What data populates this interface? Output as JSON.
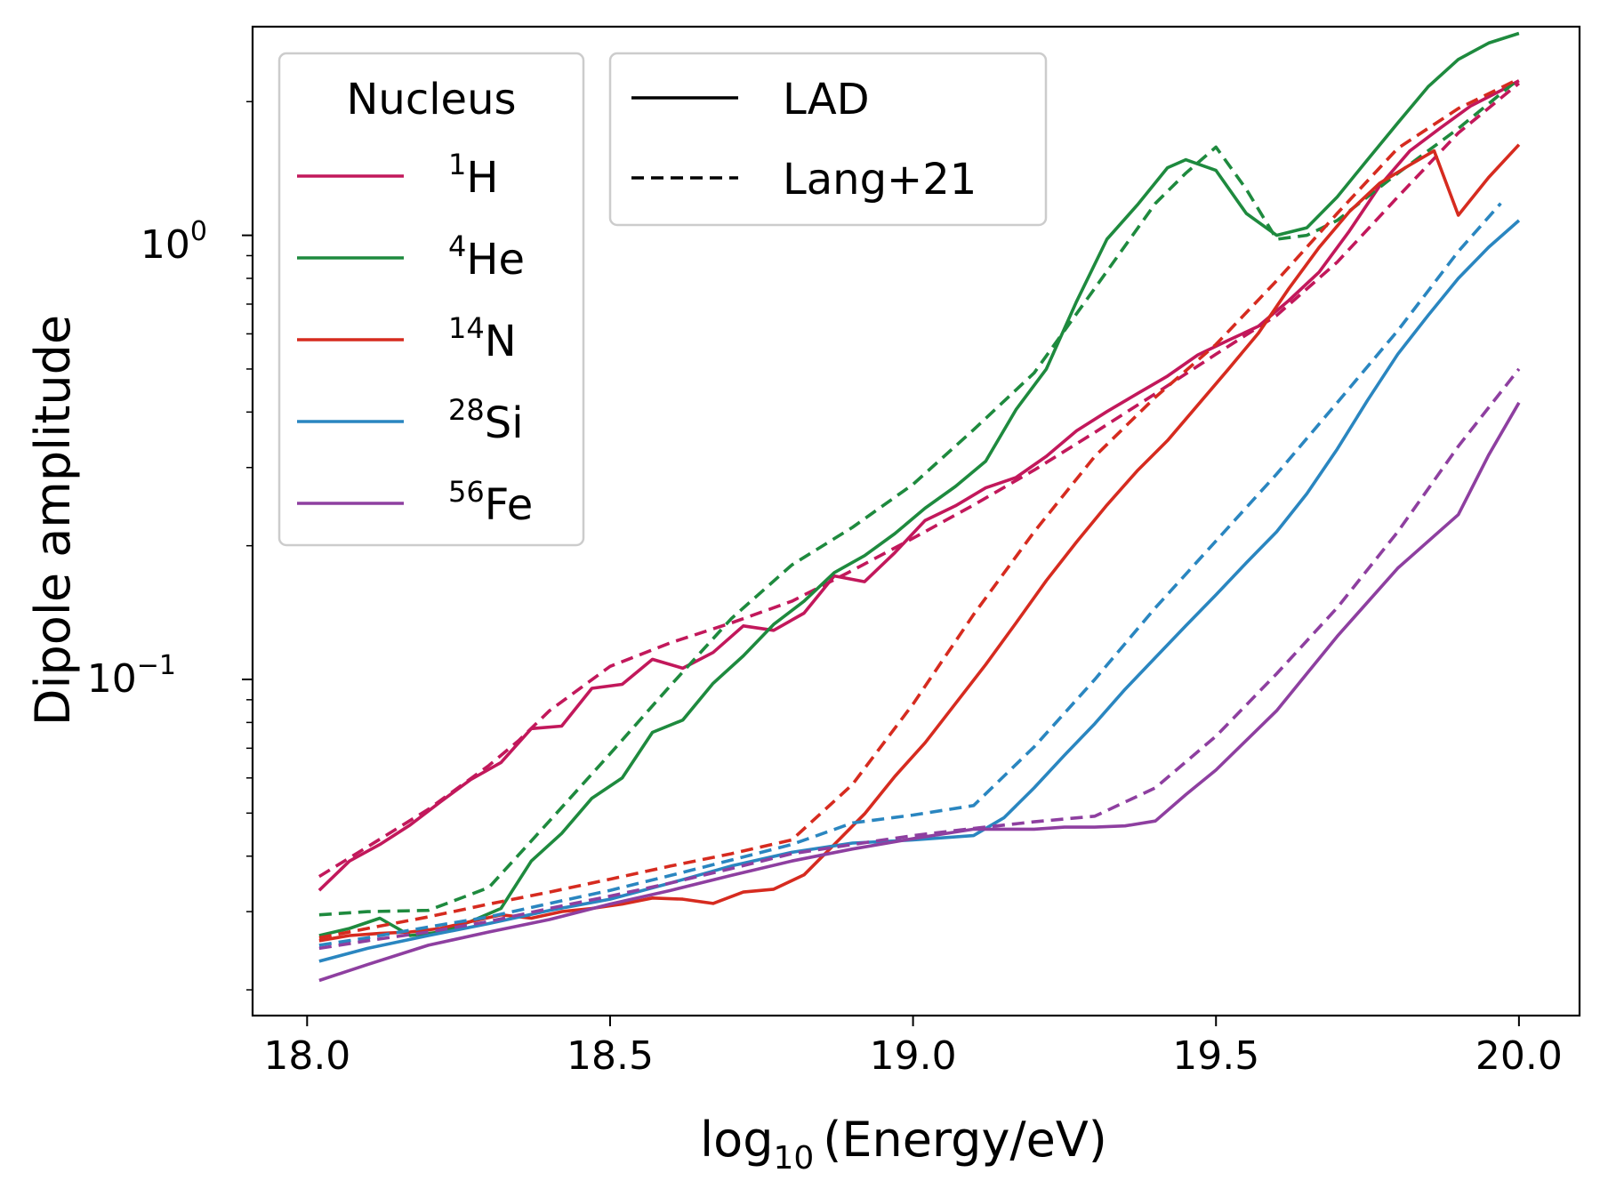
{
  "chart_data": {
    "type": "line",
    "title": "",
    "xlabel": {
      "prefix": "log",
      "subscript": "10",
      "suffix": "(Energy/eV)"
    },
    "ylabel": "Dipole amplitude",
    "xlim": [
      17.91,
      20.1
    ],
    "ylim": [
      0.0175,
      2.95
    ],
    "yscale": "log",
    "grid": false,
    "x_ticks": [
      "18.0",
      "18.5",
      "19.0",
      "19.5",
      "20.0"
    ],
    "y_ticks": [
      {
        "base": "10",
        "exp": "0",
        "value": 1
      },
      {
        "base": "10",
        "exp": "−1",
        "value": 0.1
      }
    ],
    "nucleus_legend": {
      "title": "Nucleus",
      "location": "upper-left",
      "entries": [
        {
          "mass": "1",
          "symbol": "H",
          "color": "#c2185b"
        },
        {
          "mass": "4",
          "symbol": "He",
          "color": "#1e8a3e"
        },
        {
          "mass": "14",
          "symbol": "N",
          "color": "#d62b1f"
        },
        {
          "mass": "28",
          "symbol": "Si",
          "color": "#2a86c0"
        },
        {
          "mass": "56",
          "symbol": "Fe",
          "color": "#8e3fa0"
        }
      ]
    },
    "style_legend": {
      "location": "upper-left",
      "entries": [
        {
          "label": "LAD",
          "dash": "solid"
        },
        {
          "label": "Lang+21",
          "dash": "dashed"
        }
      ]
    },
    "series": [
      {
        "name": "1H LAD",
        "color": "#c2185b",
        "dash": "solid",
        "x": [
          18.02,
          18.07,
          18.12,
          18.17,
          18.22,
          18.27,
          18.32,
          18.37,
          18.42,
          18.47,
          18.52,
          18.57,
          18.62,
          18.67,
          18.72,
          18.77,
          18.82,
          18.87,
          18.92,
          18.97,
          19.02,
          19.07,
          19.12,
          19.17,
          19.22,
          19.27,
          19.32,
          19.37,
          19.42,
          19.47,
          19.52,
          19.57,
          19.62,
          19.67,
          19.72,
          19.77,
          19.82,
          19.87,
          19.92,
          19.97,
          20.0
        ],
        "y": [
          0.0335,
          0.039,
          0.0425,
          0.047,
          0.053,
          0.0595,
          0.065,
          0.0775,
          0.0785,
          0.0955,
          0.0975,
          0.111,
          0.106,
          0.115,
          0.132,
          0.129,
          0.141,
          0.171,
          0.166,
          0.193,
          0.228,
          0.246,
          0.27,
          0.285,
          0.318,
          0.363,
          0.401,
          0.44,
          0.482,
          0.538,
          0.58,
          0.624,
          0.713,
          0.826,
          1.022,
          1.292,
          1.549,
          1.743,
          1.954,
          2.118,
          2.23
        ]
      },
      {
        "name": "1H Lang+21",
        "color": "#c2185b",
        "dash": "dashed",
        "x": [
          18.02,
          18.1,
          18.2,
          18.3,
          18.35,
          18.4,
          18.5,
          18.6,
          18.7,
          18.8,
          18.9,
          19.0,
          19.1,
          19.2,
          19.3,
          19.4,
          19.5,
          19.6,
          19.7,
          19.8,
          19.9,
          20.0
        ],
        "y": [
          0.036,
          0.042,
          0.051,
          0.064,
          0.073,
          0.085,
          0.107,
          0.121,
          0.134,
          0.15,
          0.176,
          0.208,
          0.247,
          0.296,
          0.36,
          0.44,
          0.54,
          0.66,
          0.87,
          1.22,
          1.7,
          2.2
        ]
      },
      {
        "name": "4He LAD",
        "color": "#1e8a3e",
        "dash": "solid",
        "x": [
          18.02,
          18.07,
          18.12,
          18.17,
          18.22,
          18.27,
          18.32,
          18.37,
          18.42,
          18.47,
          18.52,
          18.57,
          18.62,
          18.67,
          18.72,
          18.77,
          18.82,
          18.87,
          18.92,
          18.97,
          19.02,
          19.07,
          19.12,
          19.17,
          19.22,
          19.27,
          19.32,
          19.37,
          19.42,
          19.45,
          19.5,
          19.55,
          19.6,
          19.65,
          19.7,
          19.75,
          19.8,
          19.85,
          19.9,
          19.95,
          20.0
        ],
        "y": [
          0.0265,
          0.0275,
          0.029,
          0.0265,
          0.027,
          0.0285,
          0.0305,
          0.039,
          0.045,
          0.054,
          0.06,
          0.076,
          0.081,
          0.098,
          0.113,
          0.133,
          0.15,
          0.174,
          0.19,
          0.213,
          0.243,
          0.272,
          0.31,
          0.405,
          0.5,
          0.71,
          0.98,
          1.17,
          1.42,
          1.48,
          1.4,
          1.12,
          1.0,
          1.04,
          1.22,
          1.48,
          1.79,
          2.16,
          2.49,
          2.71,
          2.85
        ]
      },
      {
        "name": "4He Lang+21",
        "color": "#1e8a3e",
        "dash": "dashed",
        "x": [
          18.02,
          18.1,
          18.2,
          18.3,
          18.4,
          18.5,
          18.6,
          18.7,
          18.8,
          18.9,
          19.0,
          19.1,
          19.2,
          19.3,
          19.4,
          19.45,
          19.5,
          19.55,
          19.6,
          19.65,
          19.7,
          19.8,
          19.9,
          20.0
        ],
        "y": [
          0.0295,
          0.03,
          0.0302,
          0.034,
          0.048,
          0.068,
          0.097,
          0.137,
          0.181,
          0.22,
          0.275,
          0.365,
          0.49,
          0.76,
          1.18,
          1.38,
          1.58,
          1.27,
          0.98,
          1.0,
          1.08,
          1.38,
          1.74,
          2.25
        ]
      },
      {
        "name": "14N LAD",
        "color": "#d62b1f",
        "dash": "solid",
        "x": [
          18.02,
          18.07,
          18.12,
          18.17,
          18.22,
          18.27,
          18.32,
          18.37,
          18.42,
          18.47,
          18.52,
          18.57,
          18.62,
          18.67,
          18.72,
          18.77,
          18.82,
          18.87,
          18.92,
          18.97,
          19.02,
          19.07,
          19.12,
          19.17,
          19.22,
          19.27,
          19.32,
          19.37,
          19.42,
          19.47,
          19.52,
          19.57,
          19.62,
          19.67,
          19.72,
          19.77,
          19.82,
          19.86,
          19.9,
          19.95,
          20.0
        ],
        "y": [
          0.0258,
          0.0265,
          0.0268,
          0.027,
          0.0275,
          0.0285,
          0.0295,
          0.029,
          0.03,
          0.0305,
          0.0312,
          0.0322,
          0.032,
          0.0313,
          0.0332,
          0.0337,
          0.0363,
          0.0425,
          0.0498,
          0.0605,
          0.072,
          0.0882,
          0.108,
          0.134,
          0.167,
          0.204,
          0.247,
          0.295,
          0.345,
          0.415,
          0.499,
          0.602,
          0.758,
          0.939,
          1.13,
          1.31,
          1.44,
          1.55,
          1.11,
          1.35,
          1.6
        ]
      },
      {
        "name": "14N Lang+21",
        "color": "#d62b1f",
        "dash": "dashed",
        "x": [
          18.02,
          18.1,
          18.2,
          18.3,
          18.4,
          18.5,
          18.6,
          18.7,
          18.8,
          18.9,
          19.0,
          19.1,
          19.2,
          19.3,
          19.4,
          19.5,
          19.6,
          19.7,
          19.8,
          19.9,
          20.0
        ],
        "y": [
          0.0262,
          0.0275,
          0.0292,
          0.0312,
          0.0332,
          0.0355,
          0.038,
          0.0405,
          0.0435,
          0.058,
          0.088,
          0.14,
          0.215,
          0.318,
          0.432,
          0.568,
          0.79,
          1.12,
          1.57,
          1.93,
          2.25
        ]
      },
      {
        "name": "28Si LAD",
        "color": "#2a86c0",
        "dash": "solid",
        "x": [
          18.02,
          18.1,
          18.2,
          18.3,
          18.4,
          18.5,
          18.6,
          18.7,
          18.8,
          18.9,
          19.0,
          19.1,
          19.15,
          19.2,
          19.25,
          19.3,
          19.35,
          19.4,
          19.45,
          19.5,
          19.55,
          19.6,
          19.65,
          19.7,
          19.75,
          19.8,
          19.85,
          19.9,
          19.95,
          20.0
        ],
        "y": [
          0.0232,
          0.0248,
          0.0265,
          0.0282,
          0.0302,
          0.032,
          0.0348,
          0.038,
          0.0408,
          0.0428,
          0.0435,
          0.0445,
          0.0488,
          0.057,
          0.0675,
          0.0795,
          0.095,
          0.112,
          0.132,
          0.155,
          0.183,
          0.215,
          0.262,
          0.33,
          0.425,
          0.54,
          0.66,
          0.8,
          0.94,
          1.08
        ]
      },
      {
        "name": "28Si Lang+21",
        "color": "#2a86c0",
        "dash": "dashed",
        "x": [
          18.02,
          18.1,
          18.2,
          18.3,
          18.4,
          18.5,
          18.6,
          18.7,
          18.8,
          18.9,
          19.0,
          19.1,
          19.2,
          19.3,
          19.4,
          19.5,
          19.6,
          19.7,
          19.8,
          19.9,
          19.97
        ],
        "y": [
          0.0252,
          0.0262,
          0.0277,
          0.0292,
          0.0313,
          0.0335,
          0.0362,
          0.0392,
          0.0425,
          0.0475,
          0.0495,
          0.052,
          0.0705,
          0.1,
          0.145,
          0.205,
          0.29,
          0.42,
          0.61,
          0.92,
          1.18
        ]
      },
      {
        "name": "56Fe LAD",
        "color": "#8e3fa0",
        "dash": "solid",
        "x": [
          18.02,
          18.1,
          18.2,
          18.3,
          18.4,
          18.5,
          18.6,
          18.7,
          18.8,
          18.9,
          19.0,
          19.1,
          19.2,
          19.25,
          19.3,
          19.35,
          19.4,
          19.45,
          19.5,
          19.6,
          19.7,
          19.8,
          19.9,
          19.95,
          20.0
        ],
        "y": [
          0.021,
          0.0228,
          0.0252,
          0.027,
          0.0288,
          0.0312,
          0.0335,
          0.0362,
          0.039,
          0.0415,
          0.0438,
          0.046,
          0.046,
          0.0465,
          0.0465,
          0.0468,
          0.048,
          0.055,
          0.0625,
          0.085,
          0.125,
          0.178,
          0.235,
          0.32,
          0.42
        ]
      },
      {
        "name": "56Fe Lang+21",
        "color": "#8e3fa0",
        "dash": "dashed",
        "x": [
          18.02,
          18.1,
          18.2,
          18.3,
          18.4,
          18.5,
          18.6,
          18.7,
          18.8,
          18.9,
          19.0,
          19.1,
          19.2,
          19.3,
          19.4,
          19.5,
          19.6,
          19.7,
          19.8,
          19.9,
          20.0
        ],
        "y": [
          0.0248,
          0.0258,
          0.027,
          0.0285,
          0.0305,
          0.0325,
          0.0348,
          0.0375,
          0.0405,
          0.0425,
          0.0445,
          0.0462,
          0.0478,
          0.0492,
          0.057,
          0.0745,
          0.103,
          0.145,
          0.215,
          0.335,
          0.5
        ]
      }
    ]
  }
}
